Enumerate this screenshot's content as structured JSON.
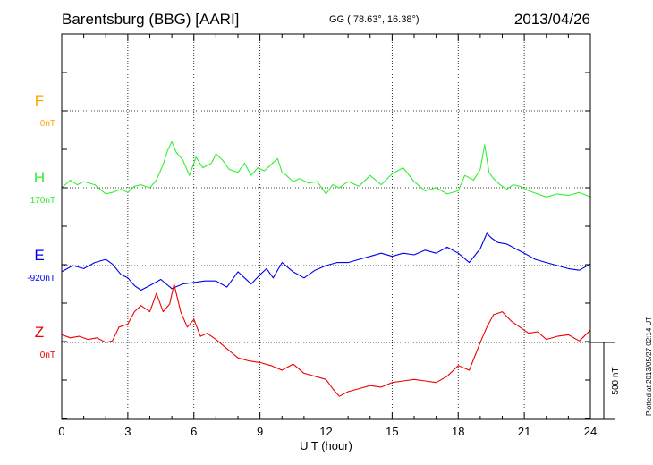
{
  "header": {
    "station": "Barentsburg (BBG)  [AARI]",
    "coords": "GG ( 78.63°,  16.38°)",
    "date": "2013/04/26"
  },
  "footer": {
    "plotted": "Plotted at 2013/05/27 02:14 UT"
  },
  "scale_bar": {
    "label": "500 nT",
    "value_nT": 500
  },
  "chart_data": {
    "type": "line",
    "xlabel": "U T (hour)",
    "xlim": [
      0,
      24
    ],
    "xticks": [
      0,
      3,
      6,
      9,
      12,
      15,
      18,
      21,
      24
    ],
    "grid": true,
    "series": [
      {
        "name": "F",
        "offset_label": "0nT",
        "color": "#ffa500",
        "x": [],
        "y": []
      },
      {
        "name": "H",
        "offset_label": "170nT",
        "color": "#33ee33",
        "x": [
          0,
          0.4,
          0.7,
          1.0,
          1.5,
          2.0,
          2.3,
          2.7,
          3.0,
          3.3,
          3.6,
          4.0,
          4.3,
          4.6,
          4.8,
          5.0,
          5.2,
          5.5,
          5.8,
          6.1,
          6.4,
          6.8,
          7.0,
          7.3,
          7.6,
          8.0,
          8.3,
          8.6,
          8.9,
          9.2,
          9.5,
          9.8,
          10.0,
          10.2,
          10.5,
          10.8,
          11.2,
          11.6,
          12.0,
          12.3,
          12.6,
          13.0,
          13.5,
          14.0,
          14.5,
          15.0,
          15.5,
          16.0,
          16.5,
          17.0,
          17.5,
          18.0,
          18.3,
          18.7,
          19.0,
          19.2,
          19.4,
          19.6,
          19.9,
          20.2,
          20.5,
          20.8,
          21.2,
          21.6,
          22.0,
          22.5,
          23.0,
          23.5,
          24.0
        ],
        "y": [
          0,
          50,
          20,
          40,
          20,
          -40,
          -30,
          -10,
          -30,
          10,
          20,
          0,
          50,
          150,
          240,
          300,
          230,
          180,
          80,
          200,
          130,
          160,
          220,
          180,
          120,
          100,
          160,
          80,
          130,
          110,
          150,
          190,
          100,
          80,
          40,
          60,
          30,
          40,
          -40,
          20,
          0,
          40,
          10,
          80,
          20,
          90,
          130,
          40,
          -20,
          0,
          -40,
          -20,
          80,
          50,
          120,
          280,
          100,
          60,
          20,
          -10,
          20,
          10,
          -20,
          -40,
          -60,
          -40,
          -50,
          -30,
          -60
        ]
      },
      {
        "name": "E",
        "offset_label": "-920nT",
        "color": "#0000ee",
        "x": [
          0,
          0.5,
          1.0,
          1.5,
          2.0,
          2.3,
          2.7,
          3.0,
          3.3,
          3.6,
          4.0,
          4.5,
          5.0,
          5.5,
          6.0,
          6.5,
          7.0,
          7.5,
          8.0,
          8.3,
          8.6,
          9.0,
          9.3,
          9.6,
          10.0,
          10.5,
          11.0,
          11.5,
          12.0,
          12.5,
          13.0,
          13.5,
          14.0,
          14.5,
          15.0,
          15.5,
          16.0,
          16.5,
          17.0,
          17.5,
          18.0,
          18.5,
          19.0,
          19.3,
          19.5,
          19.8,
          20.2,
          20.6,
          21.0,
          21.5,
          22.0,
          22.5,
          23.0,
          23.5,
          24.0
        ],
        "y": [
          -40,
          0,
          -20,
          20,
          40,
          10,
          -60,
          -80,
          -130,
          -160,
          -130,
          -90,
          -150,
          -120,
          -110,
          -100,
          -100,
          -140,
          -40,
          -80,
          -120,
          -60,
          -20,
          -80,
          20,
          -40,
          -80,
          -30,
          0,
          20,
          20,
          40,
          60,
          80,
          60,
          80,
          70,
          100,
          80,
          120,
          80,
          20,
          110,
          210,
          180,
          150,
          140,
          110,
          80,
          40,
          20,
          0,
          -20,
          -30,
          10
        ]
      },
      {
        "name": "Z",
        "offset_label": "0nT",
        "color": "#ee0000",
        "x": [
          0,
          0.4,
          0.8,
          1.2,
          1.6,
          2.0,
          2.3,
          2.6,
          3.0,
          3.3,
          3.6,
          4.0,
          4.3,
          4.6,
          4.9,
          5.1,
          5.4,
          5.7,
          6.0,
          6.3,
          6.6,
          7.0,
          7.5,
          8.0,
          8.5,
          9.0,
          9.5,
          10.0,
          10.5,
          11.0,
          11.5,
          12.0,
          12.3,
          12.6,
          13.0,
          13.5,
          14.0,
          14.5,
          15.0,
          15.5,
          16.0,
          16.5,
          17.0,
          17.5,
          18.0,
          18.5,
          19.0,
          19.3,
          19.6,
          20.0,
          20.4,
          20.8,
          21.2,
          21.6,
          22.0,
          22.5,
          23.0,
          23.5,
          24.0
        ],
        "y": [
          50,
          30,
          40,
          20,
          30,
          0,
          10,
          100,
          120,
          200,
          240,
          200,
          320,
          200,
          250,
          380,
          200,
          100,
          150,
          40,
          60,
          20,
          -40,
          -100,
          -120,
          -130,
          -150,
          -180,
          -140,
          -200,
          -220,
          -240,
          -300,
          -350,
          -320,
          -300,
          -280,
          -290,
          -260,
          -250,
          -240,
          -250,
          -260,
          -220,
          -150,
          -180,
          0,
          100,
          180,
          200,
          140,
          100,
          60,
          70,
          20,
          40,
          50,
          10,
          80
        ]
      }
    ]
  }
}
